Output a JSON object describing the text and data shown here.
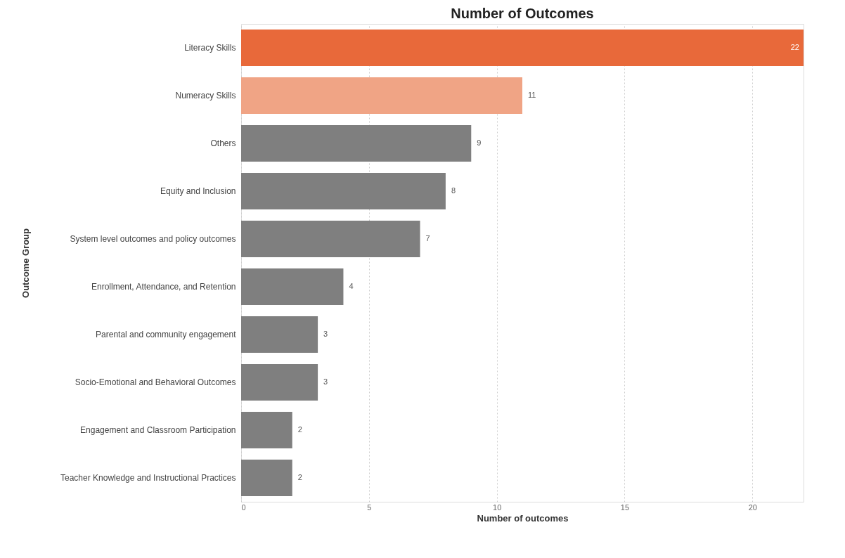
{
  "chart_data": {
    "type": "bar",
    "orientation": "horizontal",
    "title": "Number of Outcomes",
    "xlabel": "Number of outcomes",
    "ylabel": "Outcome Group",
    "categories": [
      "Literacy Skills",
      "Numeracy Skills",
      "Others",
      "Equity and Inclusion",
      "System level outcomes and policy outcomes",
      "Enrollment, Attendance, and Retention",
      "Parental and community engagement",
      "Socio-Emotional and Behavioral Outcomes",
      "Engagement and Classroom Participation",
      "Teacher Knowledge and Instructional Practices"
    ],
    "values": [
      22,
      11,
      9,
      8,
      7,
      4,
      3,
      3,
      2,
      2
    ],
    "colors": [
      "#e8693a",
      "#f0a485",
      "#7f7f7f",
      "#7f7f7f",
      "#7f7f7f",
      "#7f7f7f",
      "#7f7f7f",
      "#7f7f7f",
      "#7f7f7f",
      "#7f7f7f"
    ],
    "xlim": [
      0,
      22
    ],
    "xticks": [
      0,
      5,
      10,
      15,
      20
    ],
    "grid": "x",
    "data_labels": true
  }
}
